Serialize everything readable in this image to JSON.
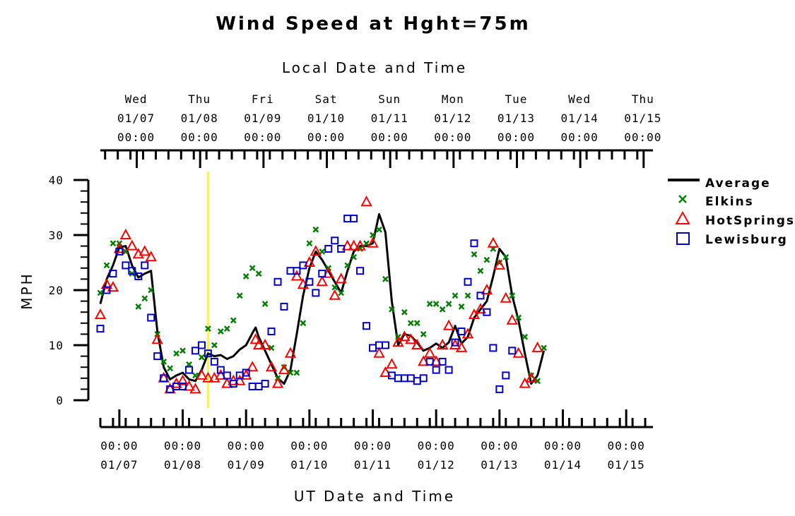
{
  "chart_data": {
    "type": "line",
    "title": "Wind Speed at Hght=75m",
    "top_axis_label": "Local Date and Time",
    "xlabel": "UT Date and Time",
    "ylabel": "MPH",
    "ylim": [
      0,
      40
    ],
    "y_ticks": [
      "0",
      "10",
      "20",
      "30",
      "40"
    ],
    "x_unit": "days",
    "xlim": [
      6.7,
      15.4
    ],
    "x_reference": "2015-01-01 00:00 UT = day 1",
    "local_ticks": [
      {
        "x": 7.0,
        "day": "Wed",
        "date": "01/07",
        "time": "00:00"
      },
      {
        "x": 8.0,
        "day": "Thu",
        "date": "01/08",
        "time": "00:00"
      },
      {
        "x": 9.0,
        "day": "Fri",
        "date": "01/09",
        "time": "00:00"
      },
      {
        "x": 10.0,
        "day": "Sat",
        "date": "01/10",
        "time": "00:00"
      },
      {
        "x": 11.0,
        "day": "Sun",
        "date": "01/11",
        "time": "00:00"
      },
      {
        "x": 12.0,
        "day": "Mon",
        "date": "01/12",
        "time": "00:00"
      },
      {
        "x": 13.0,
        "day": "Tue",
        "date": "01/13",
        "time": "00:00"
      },
      {
        "x": 14.0,
        "day": "Wed",
        "date": "01/14",
        "time": "00:00"
      },
      {
        "x": 15.0,
        "day": "Thu",
        "date": "01/15",
        "time": "00:00"
      }
    ],
    "ut_ticks": [
      {
        "x": 7.0,
        "time": "00:00",
        "date": "01/07"
      },
      {
        "x": 8.0,
        "time": "00:00",
        "date": "01/08"
      },
      {
        "x": 9.0,
        "time": "00:00",
        "date": "01/09"
      },
      {
        "x": 10.0,
        "time": "00:00",
        "date": "01/10"
      },
      {
        "x": 11.0,
        "time": "00:00",
        "date": "01/11"
      },
      {
        "x": 12.0,
        "time": "00:00",
        "date": "01/12"
      },
      {
        "x": 13.0,
        "time": "00:00",
        "date": "01/13"
      },
      {
        "x": 14.0,
        "time": "00:00",
        "date": "01/14"
      },
      {
        "x": 15.0,
        "time": "00:00",
        "date": "01/15"
      }
    ],
    "marker_line": {
      "x": 8.4,
      "color": "#ffff00"
    },
    "legend_position": "right",
    "series": [
      {
        "name": "Average",
        "marker": "line",
        "color": "#000000",
        "points": [
          [
            6.7,
            17.5
          ],
          [
            6.8,
            22.0
          ],
          [
            6.9,
            24.5
          ],
          [
            7.0,
            27.8
          ],
          [
            7.1,
            28.0
          ],
          [
            7.2,
            24.5
          ],
          [
            7.3,
            22.3
          ],
          [
            7.4,
            23.0
          ],
          [
            7.5,
            23.5
          ],
          [
            7.6,
            12.5
          ],
          [
            7.7,
            6.0
          ],
          [
            7.8,
            3.8
          ],
          [
            7.9,
            4.5
          ],
          [
            8.0,
            5.0
          ],
          [
            8.1,
            3.8
          ],
          [
            8.2,
            3.5
          ],
          [
            8.3,
            5.5
          ],
          [
            8.4,
            8.5
          ],
          [
            8.5,
            8.0
          ],
          [
            8.6,
            8.2
          ],
          [
            8.7,
            7.5
          ],
          [
            8.8,
            8.0
          ],
          [
            8.9,
            9.2
          ],
          [
            9.0,
            10.0
          ],
          [
            9.1,
            12.2
          ],
          [
            9.15,
            13.2
          ],
          [
            9.2,
            11.5
          ],
          [
            9.3,
            9.0
          ],
          [
            9.4,
            6.5
          ],
          [
            9.5,
            4.0
          ],
          [
            9.6,
            3.0
          ],
          [
            9.7,
            5.5
          ],
          [
            9.8,
            12.0
          ],
          [
            9.9,
            19.0
          ],
          [
            10.0,
            24.0
          ],
          [
            10.1,
            27.0
          ],
          [
            10.2,
            25.5
          ],
          [
            10.3,
            23.5
          ],
          [
            10.4,
            21.5
          ],
          [
            10.5,
            19.5
          ],
          [
            10.6,
            23.5
          ],
          [
            10.7,
            27.0
          ],
          [
            10.8,
            28.0
          ],
          [
            10.9,
            28.0
          ],
          [
            11.0,
            28.5
          ],
          [
            11.1,
            33.8
          ],
          [
            11.2,
            30.5
          ],
          [
            11.3,
            18.0
          ],
          [
            11.4,
            10.0
          ],
          [
            11.5,
            12.0
          ],
          [
            11.6,
            11.7
          ],
          [
            11.7,
            10.5
          ],
          [
            11.8,
            9.0
          ],
          [
            11.9,
            9.5
          ],
          [
            12.0,
            10.3
          ],
          [
            12.1,
            9.5
          ],
          [
            12.2,
            10.5
          ],
          [
            12.3,
            13.5
          ],
          [
            12.4,
            10.3
          ],
          [
            12.5,
            11.5
          ],
          [
            12.6,
            15.0
          ],
          [
            12.7,
            16.5
          ],
          [
            12.8,
            18.0
          ],
          [
            12.9,
            22.5
          ],
          [
            13.0,
            27.5
          ],
          [
            13.1,
            26.0
          ],
          [
            13.2,
            19.0
          ],
          [
            13.3,
            14.5
          ],
          [
            13.4,
            8.5
          ],
          [
            13.5,
            3.0
          ],
          [
            13.6,
            4.5
          ],
          [
            13.7,
            9.0
          ]
        ]
      },
      {
        "name": "Elkins",
        "marker": "x",
        "color": "#008000",
        "points": [
          [
            6.7,
            19.5
          ],
          [
            6.8,
            24.5
          ],
          [
            6.9,
            28.5
          ],
          [
            7.0,
            28.5
          ],
          [
            7.1,
            27.0
          ],
          [
            7.2,
            23.0
          ],
          [
            7.3,
            17.0
          ],
          [
            7.4,
            18.5
          ],
          [
            7.5,
            20.0
          ],
          [
            7.6,
            12.0
          ],
          [
            7.7,
            7.0
          ],
          [
            7.8,
            5.8
          ],
          [
            7.9,
            8.5
          ],
          [
            8.0,
            9.0
          ],
          [
            8.1,
            6.5
          ],
          [
            8.2,
            4.5
          ],
          [
            8.3,
            7.8
          ],
          [
            8.4,
            13.0
          ],
          [
            8.5,
            10.0
          ],
          [
            8.6,
            12.5
          ],
          [
            8.7,
            13.0
          ],
          [
            8.8,
            14.5
          ],
          [
            8.9,
            19.0
          ],
          [
            9.0,
            22.5
          ],
          [
            9.1,
            24.0
          ],
          [
            9.2,
            23.0
          ],
          [
            9.3,
            17.5
          ],
          [
            9.4,
            9.5
          ],
          [
            9.5,
            4.0
          ],
          [
            9.6,
            6.0
          ],
          [
            9.7,
            5.0
          ],
          [
            9.8,
            5.0
          ],
          [
            9.9,
            14.0
          ],
          [
            10.0,
            28.5
          ],
          [
            10.1,
            31.0
          ],
          [
            10.2,
            27.0
          ],
          [
            10.3,
            24.0
          ],
          [
            10.4,
            20.5
          ],
          [
            10.5,
            19.5
          ],
          [
            10.6,
            24.5
          ],
          [
            10.7,
            26.0
          ],
          [
            10.8,
            27.5
          ],
          [
            10.9,
            28.5
          ],
          [
            11.0,
            30.0
          ],
          [
            11.1,
            31.0
          ],
          [
            11.2,
            22.0
          ],
          [
            11.3,
            16.5
          ],
          [
            11.4,
            11.5
          ],
          [
            11.5,
            16.0
          ],
          [
            11.6,
            14.0
          ],
          [
            11.7,
            14.0
          ],
          [
            11.8,
            12.0
          ],
          [
            11.9,
            17.5
          ],
          [
            12.0,
            17.5
          ],
          [
            12.1,
            16.5
          ],
          [
            12.2,
            17.5
          ],
          [
            12.3,
            19.0
          ],
          [
            12.4,
            17.0
          ],
          [
            12.5,
            19.0
          ],
          [
            12.6,
            26.5
          ],
          [
            12.7,
            23.5
          ],
          [
            12.8,
            25.5
          ],
          [
            12.9,
            27.5
          ],
          [
            13.0,
            25.0
          ],
          [
            13.1,
            26.0
          ],
          [
            13.2,
            19.0
          ],
          [
            13.3,
            15.0
          ],
          [
            13.4,
            11.5
          ],
          [
            13.5,
            4.5
          ],
          [
            13.6,
            3.5
          ],
          [
            13.7,
            9.5
          ]
        ]
      },
      {
        "name": "HotSprings",
        "marker": "triangle",
        "color": "#ff0000",
        "points": [
          [
            6.7,
            15.5
          ],
          [
            6.8,
            21.0
          ],
          [
            6.9,
            20.5
          ],
          [
            7.0,
            27.5
          ],
          [
            7.1,
            30.0
          ],
          [
            7.2,
            28.0
          ],
          [
            7.3,
            26.5
          ],
          [
            7.4,
            27.0
          ],
          [
            7.5,
            26.0
          ],
          [
            7.6,
            11.0
          ],
          [
            7.7,
            4.0
          ],
          [
            7.8,
            2.0
          ],
          [
            7.9,
            3.0
          ],
          [
            8.0,
            3.5
          ],
          [
            8.1,
            2.5
          ],
          [
            8.2,
            2.0
          ],
          [
            8.3,
            4.5
          ],
          [
            8.4,
            4.0
          ],
          [
            8.5,
            4.0
          ],
          [
            8.6,
            4.5
          ],
          [
            8.7,
            3.0
          ],
          [
            8.8,
            3.5
          ],
          [
            8.9,
            3.5
          ],
          [
            9.0,
            4.5
          ],
          [
            9.1,
            6.0
          ],
          [
            9.15,
            11.0
          ],
          [
            9.2,
            10.0
          ],
          [
            9.3,
            10.0
          ],
          [
            9.4,
            6.0
          ],
          [
            9.5,
            3.0
          ],
          [
            9.6,
            5.5
          ],
          [
            9.7,
            8.5
          ],
          [
            9.8,
            22.5
          ],
          [
            9.9,
            21.0
          ],
          [
            10.0,
            25.0
          ],
          [
            10.1,
            27.0
          ],
          [
            10.2,
            21.5
          ],
          [
            10.3,
            23.0
          ],
          [
            10.4,
            19.0
          ],
          [
            10.5,
            22.0
          ],
          [
            10.6,
            28.0
          ],
          [
            10.7,
            28.0
          ],
          [
            10.8,
            28.0
          ],
          [
            10.9,
            36.0
          ],
          [
            11.0,
            28.5
          ],
          [
            11.1,
            8.5
          ],
          [
            11.2,
            5.0
          ],
          [
            11.3,
            6.5
          ],
          [
            11.4,
            10.5
          ],
          [
            11.5,
            11.5
          ],
          [
            11.6,
            11.0
          ],
          [
            11.7,
            10.0
          ],
          [
            11.8,
            7.0
          ],
          [
            11.9,
            8.5
          ],
          [
            12.0,
            7.0
          ],
          [
            12.1,
            10.0
          ],
          [
            12.2,
            13.5
          ],
          [
            12.3,
            10.0
          ],
          [
            12.4,
            9.5
          ],
          [
            12.5,
            12.0
          ],
          [
            12.6,
            15.5
          ],
          [
            12.7,
            16.5
          ],
          [
            12.8,
            20.0
          ],
          [
            12.9,
            28.5
          ],
          [
            13.0,
            24.5
          ],
          [
            13.1,
            18.5
          ],
          [
            13.2,
            14.5
          ],
          [
            13.3,
            8.5
          ],
          [
            13.4,
            3.0
          ],
          [
            13.5,
            4.0
          ],
          [
            13.6,
            9.5
          ]
        ]
      },
      {
        "name": "Lewisburg",
        "marker": "square",
        "color": "#0000cc",
        "points": [
          [
            6.7,
            13.0
          ],
          [
            6.8,
            20.0
          ],
          [
            6.9,
            23.0
          ],
          [
            7.0,
            27.0
          ],
          [
            7.1,
            24.5
          ],
          [
            7.2,
            23.5
          ],
          [
            7.3,
            22.5
          ],
          [
            7.4,
            24.5
          ],
          [
            7.5,
            15.0
          ],
          [
            7.6,
            8.0
          ],
          [
            7.7,
            4.0
          ],
          [
            7.8,
            2.0
          ],
          [
            7.9,
            2.5
          ],
          [
            8.0,
            2.5
          ],
          [
            8.1,
            5.5
          ],
          [
            8.2,
            9.0
          ],
          [
            8.3,
            10.0
          ],
          [
            8.4,
            8.5
          ],
          [
            8.5,
            7.0
          ],
          [
            8.6,
            5.5
          ],
          [
            8.7,
            4.5
          ],
          [
            8.8,
            3.0
          ],
          [
            8.9,
            4.5
          ],
          [
            9.0,
            5.0
          ],
          [
            9.1,
            2.5
          ],
          [
            9.2,
            2.5
          ],
          [
            9.3,
            3.0
          ],
          [
            9.4,
            12.5
          ],
          [
            9.5,
            21.5
          ],
          [
            9.6,
            17.0
          ],
          [
            9.7,
            23.5
          ],
          [
            9.8,
            23.5
          ],
          [
            9.9,
            24.5
          ],
          [
            10.0,
            21.5
          ],
          [
            10.1,
            19.5
          ],
          [
            10.2,
            23.0
          ],
          [
            10.3,
            27.5
          ],
          [
            10.4,
            29.0
          ],
          [
            10.5,
            27.5
          ],
          [
            10.6,
            33.0
          ],
          [
            10.7,
            33.0
          ],
          [
            10.8,
            23.5
          ],
          [
            10.9,
            13.5
          ],
          [
            11.0,
            9.5
          ],
          [
            11.1,
            10.0
          ],
          [
            11.2,
            10.0
          ],
          [
            11.3,
            4.5
          ],
          [
            11.4,
            4.0
          ],
          [
            11.5,
            4.0
          ],
          [
            11.6,
            4.0
          ],
          [
            11.7,
            3.5
          ],
          [
            11.8,
            4.0
          ],
          [
            11.9,
            7.0
          ],
          [
            12.0,
            5.5
          ],
          [
            12.1,
            7.0
          ],
          [
            12.2,
            5.5
          ],
          [
            12.3,
            10.5
          ],
          [
            12.4,
            12.5
          ],
          [
            12.5,
            21.5
          ],
          [
            12.6,
            28.5
          ],
          [
            12.7,
            19.0
          ],
          [
            12.8,
            16.0
          ],
          [
            12.9,
            9.5
          ],
          [
            13.0,
            2.0
          ],
          [
            13.1,
            4.5
          ],
          [
            13.2,
            9.0
          ]
        ]
      }
    ]
  }
}
